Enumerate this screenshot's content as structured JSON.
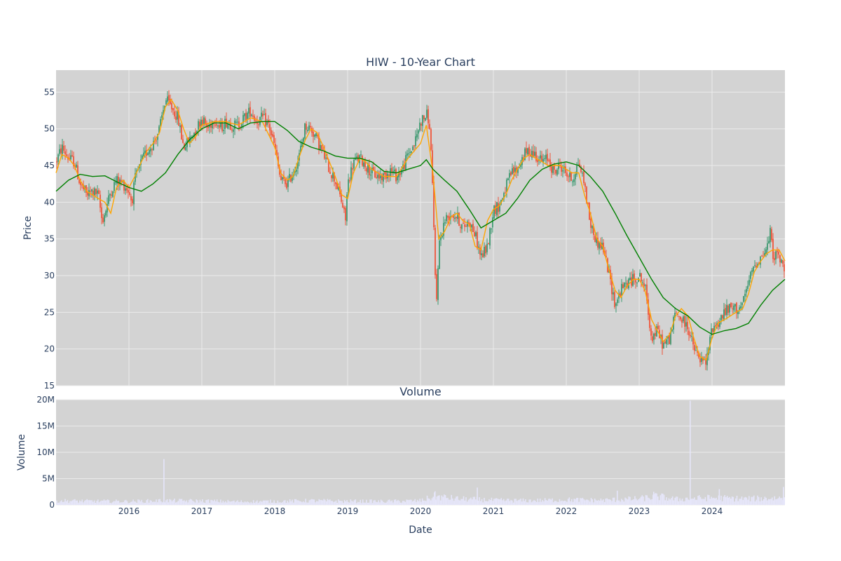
{
  "colors": {
    "plot_bg": "#d3d3d3",
    "grid": "#ebebeb",
    "up": "#3d9970",
    "down": "#ef553b",
    "ma_short": "#ffa500",
    "ma_long": "#008000",
    "volume": "#e6e6fa",
    "text": "#2a3f5f"
  },
  "chart_data": [
    {
      "type": "candlestick",
      "title": "HIW - 10-Year Chart",
      "ylabel": "Price",
      "ylim": [
        15,
        58
      ],
      "yticks": [
        15,
        20,
        25,
        30,
        35,
        40,
        45,
        50,
        55
      ],
      "xrange": [
        2015.0,
        2025.0
      ],
      "xticks": [
        2016,
        2017,
        2018,
        2019,
        2020,
        2021,
        2022,
        2023,
        2024
      ],
      "grid": true,
      "series": [
        {
          "name": "",
          "color": "#ffa500",
          "x": [
            2015.0,
            2015.08,
            2015.17,
            2015.25,
            2015.33,
            2015.42,
            2015.5,
            2015.58,
            2015.67,
            2015.75,
            2015.83,
            2015.92,
            2016.0,
            2016.08,
            2016.17,
            2016.25,
            2016.33,
            2016.42,
            2016.5,
            2016.58,
            2016.67,
            2016.75,
            2016.83,
            2016.92,
            2017.0,
            2017.17,
            2017.33,
            2017.5,
            2017.67,
            2017.83,
            2018.0,
            2018.08,
            2018.17,
            2018.25,
            2018.33,
            2018.42,
            2018.5,
            2018.58,
            2018.67,
            2018.75,
            2018.83,
            2018.92,
            2019.0,
            2019.08,
            2019.17,
            2019.25,
            2019.33,
            2019.5,
            2019.67,
            2019.83,
            2020.0,
            2020.08,
            2020.17,
            2020.25,
            2020.33,
            2020.42,
            2020.5,
            2020.58,
            2020.67,
            2020.75,
            2020.83,
            2020.92,
            2021.0,
            2021.08,
            2021.17,
            2021.25,
            2021.33,
            2021.42,
            2021.5,
            2021.58,
            2021.67,
            2021.75,
            2021.83,
            2021.92,
            2022.0,
            2022.08,
            2022.17,
            2022.25,
            2022.33,
            2022.42,
            2022.5,
            2022.58,
            2022.67,
            2022.75,
            2022.83,
            2022.92,
            2023.0,
            2023.08,
            2023.17,
            2023.25,
            2023.33,
            2023.42,
            2023.5,
            2023.58,
            2023.67,
            2023.75,
            2023.83,
            2023.92,
            2024.0,
            2024.08,
            2024.17,
            2024.25,
            2024.33,
            2024.42,
            2024.5,
            2024.58,
            2024.67,
            2024.75,
            2024.83,
            2024.92,
            2025.0
          ],
          "y": [
            44.0,
            46.5,
            46.0,
            45.0,
            43.0,
            41.5,
            41.0,
            40.5,
            40.0,
            38.5,
            42.0,
            43.0,
            42.0,
            43.5,
            45.5,
            47.0,
            48.0,
            49.5,
            53.0,
            54.0,
            52.5,
            50.0,
            48.0,
            49.0,
            50.5,
            51.0,
            51.0,
            50.5,
            51.5,
            51.0,
            47.5,
            44.0,
            43.0,
            43.5,
            46.0,
            48.5,
            50.0,
            49.5,
            47.5,
            45.5,
            43.5,
            41.0,
            40.5,
            44.0,
            46.0,
            45.5,
            44.5,
            43.5,
            43.5,
            46.0,
            48.0,
            50.5,
            44.0,
            35.0,
            36.0,
            38.0,
            38.5,
            37.5,
            37.0,
            34.0,
            33.5,
            37.5,
            39.0,
            39.5,
            41.0,
            43.0,
            44.5,
            46.0,
            46.5,
            46.0,
            45.5,
            45.0,
            45.0,
            45.0,
            44.5,
            44.0,
            44.0,
            41.0,
            38.5,
            35.0,
            34.0,
            31.0,
            28.0,
            27.0,
            28.5,
            29.5,
            29.5,
            28.0,
            24.0,
            22.5,
            21.0,
            22.0,
            24.5,
            25.5,
            24.5,
            21.5,
            19.0,
            18.5,
            21.5,
            23.5,
            24.0,
            24.5,
            25.0,
            25.5,
            27.5,
            30.5,
            32.0,
            33.0,
            33.5,
            33.5,
            32.0
          ]
        },
        {
          "name": "",
          "color": "#008000",
          "x": [
            2015.0,
            2015.17,
            2015.33,
            2015.5,
            2015.67,
            2015.83,
            2016.0,
            2016.17,
            2016.33,
            2016.5,
            2016.67,
            2016.83,
            2017.0,
            2017.17,
            2017.33,
            2017.5,
            2017.67,
            2017.83,
            2018.0,
            2018.17,
            2018.33,
            2018.5,
            2018.67,
            2018.83,
            2019.0,
            2019.17,
            2019.33,
            2019.5,
            2019.67,
            2019.83,
            2020.0,
            2020.08,
            2020.17,
            2020.33,
            2020.5,
            2020.67,
            2020.83,
            2021.0,
            2021.17,
            2021.33,
            2021.5,
            2021.67,
            2021.83,
            2022.0,
            2022.17,
            2022.33,
            2022.5,
            2022.67,
            2022.83,
            2023.0,
            2023.17,
            2023.33,
            2023.5,
            2023.67,
            2023.83,
            2024.0,
            2024.17,
            2024.33,
            2024.5,
            2024.67,
            2024.83,
            2025.0
          ],
          "y": [
            41.5,
            43.0,
            43.8,
            43.5,
            43.6,
            42.8,
            42.0,
            41.5,
            42.5,
            44.0,
            46.5,
            48.5,
            50.0,
            50.8,
            50.8,
            50.0,
            50.8,
            51.0,
            51.0,
            49.8,
            48.3,
            47.5,
            47.0,
            46.3,
            46.0,
            46.0,
            45.5,
            44.2,
            44.0,
            44.5,
            45.0,
            45.8,
            44.5,
            43.0,
            41.5,
            39.0,
            36.5,
            37.5,
            38.5,
            40.5,
            43.0,
            44.5,
            45.2,
            45.5,
            45.0,
            43.5,
            41.5,
            38.5,
            35.5,
            32.5,
            29.5,
            27.0,
            25.5,
            24.5,
            23.0,
            22.0,
            22.5,
            22.8,
            23.5,
            26.0,
            28.0,
            29.5
          ]
        }
      ],
      "ohlc_anchors": {
        "x": [
          2015.0,
          2015.08,
          2015.17,
          2015.25,
          2015.33,
          2015.42,
          2015.5,
          2015.58,
          2015.63,
          2015.67,
          2015.75,
          2015.83,
          2015.92,
          2016.0,
          2016.04,
          2016.08,
          2016.17,
          2016.25,
          2016.33,
          2016.42,
          2016.5,
          2016.58,
          2016.67,
          2016.75,
          2016.83,
          2016.92,
          2017.0,
          2017.08,
          2017.17,
          2017.25,
          2017.33,
          2017.42,
          2017.5,
          2017.58,
          2017.67,
          2017.75,
          2017.83,
          2017.92,
          2018.0,
          2018.08,
          2018.17,
          2018.25,
          2018.33,
          2018.42,
          2018.5,
          2018.58,
          2018.67,
          2018.75,
          2018.83,
          2018.92,
          2018.97,
          2019.0,
          2019.08,
          2019.17,
          2019.25,
          2019.33,
          2019.42,
          2019.5,
          2019.58,
          2019.67,
          2019.75,
          2019.83,
          2019.92,
          2020.0,
          2020.1,
          2020.15,
          2020.2,
          2020.22,
          2020.25,
          2020.33,
          2020.42,
          2020.5,
          2020.58,
          2020.67,
          2020.75,
          2020.83,
          2020.92,
          2021.0,
          2021.08,
          2021.17,
          2021.25,
          2021.33,
          2021.42,
          2021.5,
          2021.58,
          2021.67,
          2021.75,
          2021.83,
          2021.92,
          2022.0,
          2022.08,
          2022.17,
          2022.25,
          2022.33,
          2022.42,
          2022.5,
          2022.58,
          2022.67,
          2022.75,
          2022.83,
          2022.92,
          2023.0,
          2023.08,
          2023.17,
          2023.25,
          2023.33,
          2023.42,
          2023.5,
          2023.58,
          2023.67,
          2023.75,
          2023.83,
          2023.92,
          2024.0,
          2024.08,
          2024.17,
          2024.25,
          2024.33,
          2024.42,
          2024.5,
          2024.58,
          2024.67,
          2024.75,
          2024.8,
          2024.83,
          2024.92,
          2025.0
        ],
        "y": [
          45.5,
          47.5,
          46.0,
          45.5,
          42.5,
          41.0,
          41.5,
          41.0,
          37.5,
          38.5,
          41.5,
          43.0,
          42.5,
          41.5,
          40.0,
          43.0,
          45.5,
          47.0,
          48.0,
          50.0,
          54.0,
          53.0,
          51.5,
          47.5,
          48.5,
          50.0,
          51.5,
          50.0,
          51.5,
          50.0,
          51.0,
          50.5,
          50.5,
          51.5,
          52.5,
          51.0,
          51.5,
          50.5,
          47.5,
          43.0,
          42.5,
          44.0,
          46.0,
          50.5,
          50.0,
          48.5,
          46.5,
          44.5,
          43.0,
          40.0,
          37.5,
          42.5,
          45.5,
          46.0,
          45.0,
          44.0,
          43.5,
          43.5,
          44.5,
          43.5,
          44.5,
          46.5,
          48.0,
          51.0,
          52.0,
          47.0,
          30.0,
          26.5,
          34.0,
          37.5,
          38.5,
          38.0,
          36.5,
          37.5,
          35.5,
          32.5,
          34.0,
          39.0,
          39.5,
          42.0,
          44.0,
          44.5,
          46.5,
          47.0,
          46.5,
          45.5,
          46.0,
          44.0,
          45.0,
          44.0,
          43.0,
          45.5,
          42.5,
          37.0,
          34.5,
          34.0,
          30.5,
          26.0,
          28.0,
          29.0,
          29.5,
          30.0,
          28.5,
          21.5,
          22.5,
          20.5,
          21.5,
          25.0,
          24.0,
          23.0,
          20.0,
          18.5,
          18.0,
          23.0,
          23.5,
          25.0,
          25.5,
          25.5,
          26.0,
          29.0,
          31.5,
          32.5,
          33.5,
          36.0,
          33.0,
          32.5,
          30.5
        ]
      }
    },
    {
      "type": "bar",
      "title": "Volume",
      "xlabel": "Date",
      "ylabel": "Volume",
      "ylim": [
        0,
        20000000
      ],
      "yticks": [
        0,
        5000000,
        10000000,
        15000000,
        20000000
      ],
      "ytick_labels": [
        "0",
        "5M",
        "10M",
        "15M",
        "20M"
      ],
      "xrange": [
        2015.0,
        2025.0
      ],
      "xticks": [
        2016,
        2017,
        2018,
        2019,
        2020,
        2021,
        2022,
        2023,
        2024
      ],
      "grid": true,
      "volume_anchors": {
        "x": [
          2015.0,
          2015.5,
          2016.0,
          2016.5,
          2017.0,
          2017.5,
          2018.0,
          2018.5,
          2019.0,
          2019.5,
          2020.0,
          2020.2,
          2020.5,
          2021.0,
          2021.5,
          2022.0,
          2022.5,
          2023.0,
          2023.25,
          2023.5,
          2024.0,
          2024.5,
          2025.0
        ],
        "y": [
          900000,
          800000,
          750000,
          900000,
          850000,
          700000,
          750000,
          900000,
          800000,
          750000,
          900000,
          1800000,
          1300000,
          1000000,
          900000,
          1100000,
          1000000,
          1300000,
          1800000,
          1200000,
          1500000,
          1300000,
          1500000
        ]
      },
      "volume_spikes": [
        {
          "x": 2016.48,
          "y": 8700000
        },
        {
          "x": 2023.7,
          "y": 19800000
        },
        {
          "x": 2020.78,
          "y": 3300000
        },
        {
          "x": 2024.1,
          "y": 3000000
        },
        {
          "x": 2024.98,
          "y": 3400000
        },
        {
          "x": 2022.7,
          "y": 2700000
        },
        {
          "x": 2023.2,
          "y": 2500000
        },
        {
          "x": 2020.2,
          "y": 2600000
        }
      ]
    }
  ]
}
